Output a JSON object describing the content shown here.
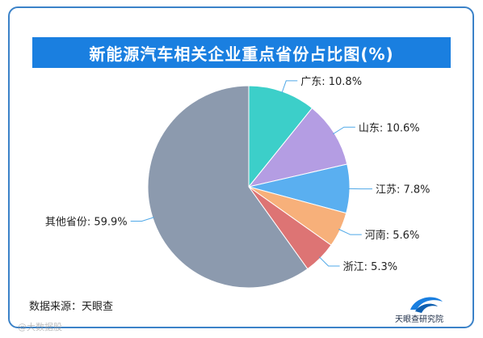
{
  "chart_data": {
    "type": "pie",
    "title": "新能源汽车相关企业重点省份占比图(%)",
    "slices": [
      {
        "label": "广东",
        "display": "广东: 10.8%",
        "value": 10.8,
        "color": "#3ccfc9"
      },
      {
        "label": "山东",
        "display": "山东: 10.6%",
        "value": 10.6,
        "color": "#b49de3"
      },
      {
        "label": "江苏",
        "display": "江苏: 7.8%",
        "value": 7.8,
        "color": "#5aaff0"
      },
      {
        "label": "河南",
        "display": "河南: 5.6%",
        "value": 5.6,
        "color": "#f7b07a"
      },
      {
        "label": "浙江",
        "display": "浙江: 5.3%",
        "value": 5.3,
        "color": "#dd7474"
      },
      {
        "label": "其他省份",
        "display": "其他省份: 59.9%",
        "value": 59.9,
        "color": "#8c9aae"
      }
    ],
    "start_position": "12 o'clock",
    "direction": "clockwise",
    "unit": "%"
  },
  "source_text": "数据来源：天眼查",
  "brand_name": "天眼查研究院",
  "watermark_text": "@大数据股",
  "colors": {
    "frame_border": "#3b82c8",
    "title_background": "#1a7fe0",
    "label_line": "#4fa8e8"
  }
}
